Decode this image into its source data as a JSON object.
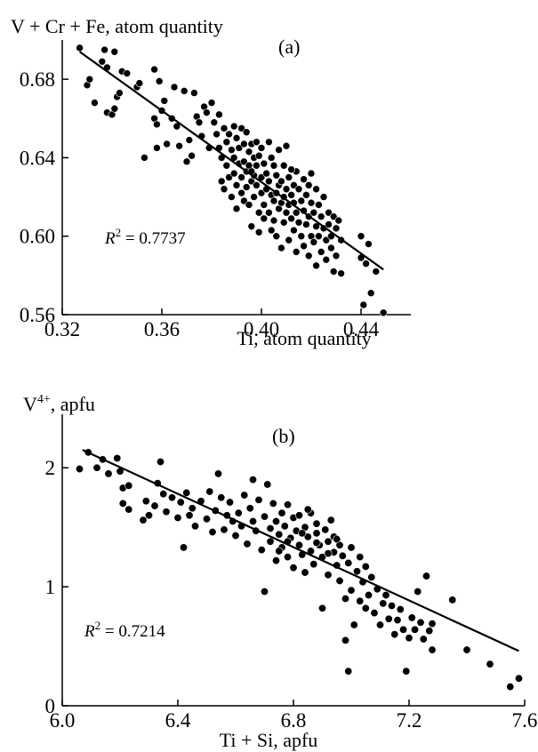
{
  "chart_data": [
    {
      "type": "scatter",
      "panel_label": "(a)",
      "xlabel": "Ti, atom quantity",
      "ylabel": "V + Cr + Fe, atom quantity",
      "xlim": [
        0.32,
        0.46
      ],
      "ylim": [
        0.56,
        0.7
      ],
      "xticks": [
        0.32,
        0.36,
        0.4,
        0.44
      ],
      "yticks": [
        0.56,
        0.6,
        0.64,
        0.68
      ],
      "xtick_labels": [
        "0.32",
        "0.36",
        "0.40",
        "0.44"
      ],
      "ytick_labels": [
        "0.56",
        "0.60",
        "0.64",
        "0.68"
      ],
      "r2_prefix": "R",
      "r2_exp": "2",
      "r2_value": " = 0.7737",
      "trendline": [
        [
          0.327,
          0.694
        ],
        [
          0.449,
          0.583
        ]
      ],
      "points": [
        [
          0.327,
          0.696
        ],
        [
          0.33,
          0.677
        ],
        [
          0.331,
          0.68
        ],
        [
          0.333,
          0.668
        ],
        [
          0.336,
          0.689
        ],
        [
          0.337,
          0.695
        ],
        [
          0.338,
          0.686
        ],
        [
          0.338,
          0.663
        ],
        [
          0.34,
          0.662
        ],
        [
          0.341,
          0.694
        ],
        [
          0.341,
          0.665
        ],
        [
          0.342,
          0.671
        ],
        [
          0.343,
          0.673
        ],
        [
          0.344,
          0.684
        ],
        [
          0.346,
          0.683
        ],
        [
          0.35,
          0.676
        ],
        [
          0.351,
          0.678
        ],
        [
          0.353,
          0.64
        ],
        [
          0.357,
          0.685
        ],
        [
          0.357,
          0.66
        ],
        [
          0.358,
          0.657
        ],
        [
          0.358,
          0.645
        ],
        [
          0.359,
          0.679
        ],
        [
          0.36,
          0.664
        ],
        [
          0.361,
          0.669
        ],
        [
          0.362,
          0.647
        ],
        [
          0.364,
          0.66
        ],
        [
          0.365,
          0.676
        ],
        [
          0.366,
          0.656
        ],
        [
          0.367,
          0.646
        ],
        [
          0.369,
          0.674
        ],
        [
          0.37,
          0.638
        ],
        [
          0.371,
          0.649
        ],
        [
          0.372,
          0.641
        ],
        [
          0.373,
          0.673
        ],
        [
          0.374,
          0.661
        ],
        [
          0.375,
          0.658
        ],
        [
          0.376,
          0.651
        ],
        [
          0.377,
          0.666
        ],
        [
          0.378,
          0.663
        ],
        [
          0.379,
          0.645
        ],
        [
          0.38,
          0.668
        ],
        [
          0.381,
          0.658
        ],
        [
          0.382,
          0.652
        ],
        [
          0.383,
          0.645
        ],
        [
          0.383,
          0.662
        ],
        [
          0.384,
          0.64
        ],
        [
          0.384,
          0.628
        ],
        [
          0.385,
          0.655
        ],
        [
          0.385,
          0.624
        ],
        [
          0.386,
          0.648
        ],
        [
          0.386,
          0.636
        ],
        [
          0.387,
          0.652
        ],
        [
          0.387,
          0.63
        ],
        [
          0.388,
          0.644
        ],
        [
          0.388,
          0.62
        ],
        [
          0.389,
          0.656
        ],
        [
          0.389,
          0.64
        ],
        [
          0.389,
          0.632
        ],
        [
          0.39,
          0.65
        ],
        [
          0.39,
          0.626
        ],
        [
          0.39,
          0.614
        ],
        [
          0.391,
          0.645
        ],
        [
          0.391,
          0.637
        ],
        [
          0.392,
          0.655
        ],
        [
          0.392,
          0.63
        ],
        [
          0.392,
          0.622
        ],
        [
          0.393,
          0.647
        ],
        [
          0.393,
          0.638
        ],
        [
          0.393,
          0.618
        ],
        [
          0.394,
          0.653
        ],
        [
          0.394,
          0.633
        ],
        [
          0.394,
          0.625
        ],
        [
          0.395,
          0.643
        ],
        [
          0.395,
          0.636
        ],
        [
          0.395,
          0.616
        ],
        [
          0.396,
          0.647
        ],
        [
          0.396,
          0.628
        ],
        [
          0.396,
          0.605
        ],
        [
          0.397,
          0.64
        ],
        [
          0.397,
          0.631
        ],
        [
          0.397,
          0.62
        ],
        [
          0.398,
          0.648
        ],
        [
          0.398,
          0.636
        ],
        [
          0.398,
          0.626
        ],
        [
          0.399,
          0.641
        ],
        [
          0.399,
          0.612
        ],
        [
          0.399,
          0.602
        ],
        [
          0.4,
          0.645
        ],
        [
          0.4,
          0.63
        ],
        [
          0.4,
          0.622
        ],
        [
          0.401,
          0.637
        ],
        [
          0.401,
          0.616
        ],
        [
          0.401,
          0.609
        ],
        [
          0.402,
          0.632
        ],
        [
          0.402,
          0.624
        ],
        [
          0.403,
          0.648
        ],
        [
          0.403,
          0.628
        ],
        [
          0.403,
          0.612
        ],
        [
          0.404,
          0.64
        ],
        [
          0.404,
          0.621
        ],
        [
          0.404,
          0.603
        ],
        [
          0.405,
          0.636
        ],
        [
          0.405,
          0.618
        ],
        [
          0.405,
          0.608
        ],
        [
          0.406,
          0.631
        ],
        [
          0.406,
          0.622
        ],
        [
          0.406,
          0.6
        ],
        [
          0.407,
          0.644
        ],
        [
          0.407,
          0.626
        ],
        [
          0.407,
          0.614
        ],
        [
          0.408,
          0.628
        ],
        [
          0.408,
          0.617
        ],
        [
          0.408,
          0.594
        ],
        [
          0.409,
          0.636
        ],
        [
          0.409,
          0.62
        ],
        [
          0.409,
          0.607
        ],
        [
          0.41,
          0.646
        ],
        [
          0.41,
          0.624
        ],
        [
          0.41,
          0.612
        ],
        [
          0.411,
          0.63
        ],
        [
          0.411,
          0.616
        ],
        [
          0.411,
          0.598
        ],
        [
          0.412,
          0.621
        ],
        [
          0.412,
          0.609
        ],
        [
          0.413,
          0.626
        ],
        [
          0.413,
          0.617
        ],
        [
          0.413,
          0.603
        ],
        [
          0.414,
          0.633
        ],
        [
          0.414,
          0.612
        ],
        [
          0.414,
          0.592
        ],
        [
          0.415,
          0.624
        ],
        [
          0.415,
          0.607
        ],
        [
          0.416,
          0.618
        ],
        [
          0.416,
          0.6
        ],
        [
          0.417,
          0.629
        ],
        [
          0.417,
          0.613
        ],
        [
          0.417,
          0.595
        ],
        [
          0.418,
          0.621
        ],
        [
          0.418,
          0.606
        ],
        [
          0.419,
          0.626
        ],
        [
          0.419,
          0.61
        ],
        [
          0.419,
          0.59
        ],
        [
          0.42,
          0.632
        ],
        [
          0.42,
          0.617
        ],
        [
          0.42,
          0.6
        ],
        [
          0.421,
          0.612
        ],
        [
          0.421,
          0.597
        ],
        [
          0.422,
          0.624
        ],
        [
          0.422,
          0.605
        ],
        [
          0.422,
          0.585
        ],
        [
          0.423,
          0.616
        ],
        [
          0.423,
          0.6
        ],
        [
          0.424,
          0.61
        ],
        [
          0.424,
          0.592
        ],
        [
          0.425,
          0.62
        ],
        [
          0.425,
          0.604
        ],
        [
          0.426,
          0.598
        ],
        [
          0.426,
          0.588
        ],
        [
          0.427,
          0.612
        ],
        [
          0.427,
          0.606
        ],
        [
          0.428,
          0.6
        ],
        [
          0.428,
          0.594
        ],
        [
          0.429,
          0.61
        ],
        [
          0.429,
          0.582
        ],
        [
          0.43,
          0.604
        ],
        [
          0.43,
          0.59
        ],
        [
          0.431,
          0.608
        ],
        [
          0.432,
          0.598
        ],
        [
          0.432,
          0.581
        ],
        [
          0.44,
          0.6
        ],
        [
          0.44,
          0.589
        ],
        [
          0.441,
          0.565
        ],
        [
          0.442,
          0.586
        ],
        [
          0.443,
          0.596
        ],
        [
          0.444,
          0.571
        ],
        [
          0.446,
          0.582
        ],
        [
          0.449,
          0.561
        ],
        [
          0.412,
          0.634
        ],
        [
          0.396,
          0.633
        ]
      ]
    },
    {
      "type": "scatter",
      "panel_label": "(b)",
      "xlabel": "Ti + Si, apfu",
      "ylabel_base": "V",
      "ylabel_sup": "4+",
      "ylabel_rest": ", apfu",
      "xlim": [
        6.0,
        7.6
      ],
      "ylim": [
        0,
        2.45
      ],
      "xticks": [
        6.0,
        6.4,
        6.8,
        7.2,
        7.6
      ],
      "yticks": [
        0,
        1,
        2
      ],
      "xtick_labels": [
        "6.0",
        "6.4",
        "6.8",
        "7.2",
        "7.6"
      ],
      "ytick_labels": [
        "0",
        "1",
        "2"
      ],
      "r2_prefix": "R",
      "r2_exp": "2",
      "r2_value": " = 0.7214",
      "trendline": [
        [
          6.07,
          2.15
        ],
        [
          7.58,
          0.46
        ]
      ],
      "points": [
        [
          6.06,
          1.99
        ],
        [
          6.09,
          2.13
        ],
        [
          6.12,
          2.0
        ],
        [
          6.14,
          2.07
        ],
        [
          6.16,
          1.95
        ],
        [
          6.19,
          2.08
        ],
        [
          6.2,
          1.97
        ],
        [
          6.21,
          1.7
        ],
        [
          6.21,
          1.83
        ],
        [
          6.23,
          1.65
        ],
        [
          6.23,
          1.85
        ],
        [
          6.28,
          1.56
        ],
        [
          6.29,
          1.72
        ],
        [
          6.3,
          1.6
        ],
        [
          6.32,
          1.68
        ],
        [
          6.33,
          1.87
        ],
        [
          6.34,
          2.05
        ],
        [
          6.35,
          1.78
        ],
        [
          6.36,
          1.63
        ],
        [
          6.38,
          1.75
        ],
        [
          6.4,
          1.58
        ],
        [
          6.41,
          1.71
        ],
        [
          6.42,
          1.33
        ],
        [
          6.43,
          1.79
        ],
        [
          6.44,
          1.6
        ],
        [
          6.45,
          1.66
        ],
        [
          6.46,
          1.51
        ],
        [
          6.48,
          1.72
        ],
        [
          6.5,
          1.57
        ],
        [
          6.51,
          1.8
        ],
        [
          6.52,
          1.46
        ],
        [
          6.53,
          1.64
        ],
        [
          6.54,
          1.95
        ],
        [
          6.55,
          1.75
        ],
        [
          6.56,
          1.48
        ],
        [
          6.57,
          1.6
        ],
        [
          6.58,
          1.71
        ],
        [
          6.59,
          1.55
        ],
        [
          6.6,
          1.43
        ],
        [
          6.61,
          1.62
        ],
        [
          6.62,
          1.51
        ],
        [
          6.63,
          1.77
        ],
        [
          6.64,
          1.36
        ],
        [
          6.65,
          1.66
        ],
        [
          6.66,
          1.9
        ],
        [
          6.66,
          1.55
        ],
        [
          6.67,
          1.47
        ],
        [
          6.68,
          1.73
        ],
        [
          6.69,
          1.31
        ],
        [
          6.7,
          0.96
        ],
        [
          6.7,
          1.59
        ],
        [
          6.71,
          1.86
        ],
        [
          6.72,
          1.49
        ],
        [
          6.72,
          1.38
        ],
        [
          6.73,
          1.7
        ],
        [
          6.74,
          1.55
        ],
        [
          6.74,
          1.22
        ],
        [
          6.75,
          1.44
        ],
        [
          6.76,
          1.62
        ],
        [
          6.76,
          1.33
        ],
        [
          6.77,
          1.51
        ],
        [
          6.78,
          1.25
        ],
        [
          6.78,
          1.69
        ],
        [
          6.79,
          1.41
        ],
        [
          6.8,
          1.58
        ],
        [
          6.8,
          1.16
        ],
        [
          6.81,
          1.47
        ],
        [
          6.82,
          1.35
        ],
        [
          6.82,
          1.6
        ],
        [
          6.83,
          1.27
        ],
        [
          6.84,
          1.5
        ],
        [
          6.84,
          1.12
        ],
        [
          6.85,
          1.42
        ],
        [
          6.86,
          1.62
        ],
        [
          6.86,
          1.3
        ],
        [
          6.87,
          1.19
        ],
        [
          6.88,
          1.45
        ],
        [
          6.88,
          1.53
        ],
        [
          6.89,
          1.35
        ],
        [
          6.9,
          1.25
        ],
        [
          6.9,
          0.82
        ],
        [
          6.91,
          1.48
        ],
        [
          6.92,
          1.38
        ],
        [
          6.92,
          1.1
        ],
        [
          6.93,
          1.56
        ],
        [
          6.94,
          1.29
        ],
        [
          6.94,
          1.42
        ],
        [
          6.95,
          1.18
        ],
        [
          6.96,
          1.35
        ],
        [
          6.96,
          1.05
        ],
        [
          6.97,
          1.26
        ],
        [
          6.98,
          0.9
        ],
        [
          6.98,
          0.55
        ],
        [
          6.99,
          0.29
        ],
        [
          6.99,
          1.2
        ],
        [
          7.0,
          1.33
        ],
        [
          7.0,
          0.97
        ],
        [
          7.01,
          0.68
        ],
        [
          7.02,
          1.13
        ],
        [
          7.03,
          1.25
        ],
        [
          7.03,
          0.88
        ],
        [
          7.04,
          1.04
        ],
        [
          7.05,
          0.82
        ],
        [
          7.05,
          1.17
        ],
        [
          7.06,
          0.93
        ],
        [
          7.07,
          1.08
        ],
        [
          7.08,
          0.78
        ],
        [
          7.09,
          0.98
        ],
        [
          7.1,
          0.68
        ],
        [
          7.11,
          0.86
        ],
        [
          7.12,
          0.93
        ],
        [
          7.13,
          0.73
        ],
        [
          7.14,
          0.84
        ],
        [
          7.15,
          0.6
        ],
        [
          7.16,
          0.72
        ],
        [
          7.17,
          0.81
        ],
        [
          7.18,
          0.64
        ],
        [
          7.19,
          0.29
        ],
        [
          7.2,
          0.57
        ],
        [
          7.21,
          0.74
        ],
        [
          7.22,
          0.64
        ],
        [
          7.23,
          0.96
        ],
        [
          7.24,
          0.7
        ],
        [
          7.25,
          0.56
        ],
        [
          7.26,
          1.09
        ],
        [
          7.27,
          0.63
        ],
        [
          7.28,
          0.69
        ],
        [
          7.28,
          0.47
        ],
        [
          7.35,
          0.89
        ],
        [
          7.4,
          0.47
        ],
        [
          7.48,
          0.35
        ],
        [
          7.55,
          0.16
        ],
        [
          7.58,
          0.23
        ],
        [
          6.85,
          1.65
        ],
        [
          6.88,
          1.37
        ],
        [
          6.92,
          1.28
        ],
        [
          6.95,
          1.4
        ],
        [
          6.83,
          1.45
        ],
        [
          6.78,
          1.38
        ],
        [
          6.75,
          1.3
        ]
      ]
    }
  ]
}
